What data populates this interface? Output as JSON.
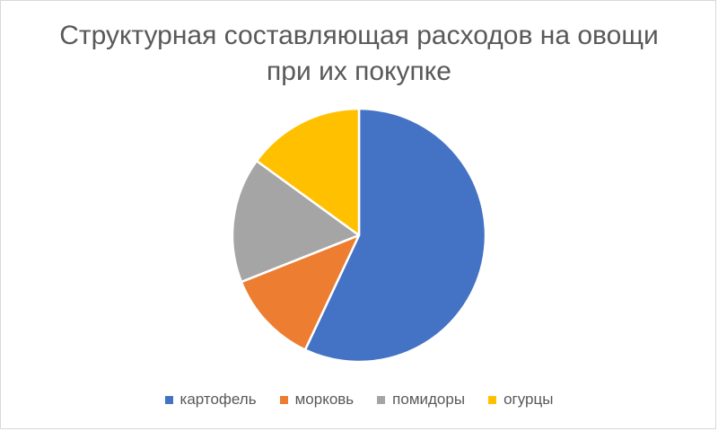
{
  "chart_data": {
    "type": "pie",
    "title_lines": [
      "Структурная составляющая расходов на овощи",
      "при их покупке"
    ],
    "categories": [
      "картофель",
      "морковь",
      "помидоры",
      "огурцы"
    ],
    "values": [
      57,
      12,
      16,
      15
    ],
    "colors": [
      "#4472C4",
      "#ED7D31",
      "#A5A5A5",
      "#FFC000"
    ],
    "legend_position": "bottom"
  }
}
